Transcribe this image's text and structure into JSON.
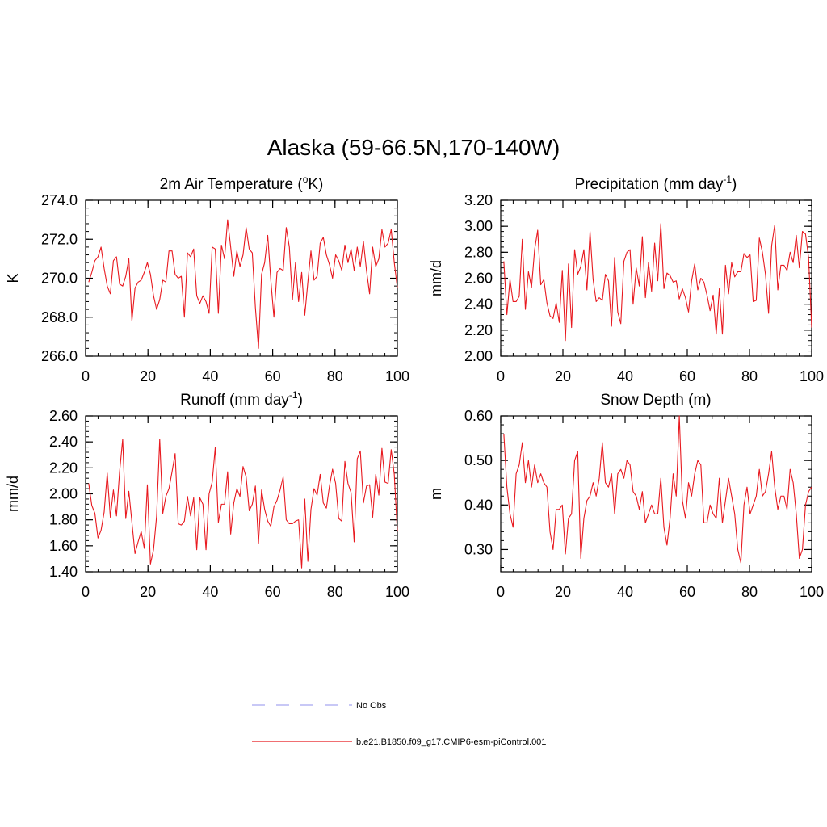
{
  "title": "Alaska (59-66.5N,170-140W)",
  "colors": {
    "model": "#e8191f",
    "obs": "#a8a8f0",
    "axis": "#000000"
  },
  "legend": {
    "obs_label": "No Obs",
    "model_label": "b.e21.B1850.f09_g17.CMIP6-esm-piControl.001"
  },
  "chart_data": [
    {
      "type": "line",
      "title_main": "2m Air Temperature (",
      "title_sup": "o",
      "title_end": "K)",
      "ylabel": "K",
      "xlim": [
        0,
        100
      ],
      "ylim": [
        266.0,
        274.0
      ],
      "xticks": [
        0,
        20,
        40,
        60,
        80,
        100
      ],
      "yticks": [
        266.0,
        268.0,
        270.0,
        272.0,
        274.0
      ],
      "ytick_labels": [
        "266.0",
        "268.0",
        "270.0",
        "272.0",
        "274.0"
      ],
      "series": [
        {
          "name": "b.e21.B1850.f09_g17.CMIP6-esm-piControl.001",
          "values": [
            269.8,
            270.3,
            270.9,
            271.1,
            271.6,
            270.5,
            269.6,
            269.2,
            270.9,
            271.1,
            269.7,
            269.6,
            270.1,
            271.0,
            267.8,
            269.5,
            269.8,
            269.9,
            270.3,
            270.8,
            270.2,
            269.1,
            268.4,
            268.9,
            269.9,
            269.8,
            271.4,
            271.4,
            270.2,
            270.0,
            270.1,
            268.0,
            271.3,
            271.1,
            271.5,
            269.1,
            268.7,
            269.1,
            268.8,
            268.2,
            271.6,
            271.5,
            268.2,
            271.7,
            271.0,
            273.0,
            271.6,
            270.1,
            271.4,
            270.6,
            271.2,
            272.6,
            271.5,
            271.3,
            268.5,
            266.4,
            270.2,
            270.8,
            272.2,
            269.9,
            268.0,
            270.3,
            270.5,
            270.4,
            272.6,
            271.6,
            268.9,
            270.8,
            268.8,
            270.3,
            268.1,
            269.8,
            271.4,
            269.9,
            270.1,
            271.8,
            272.1,
            271.2,
            270.7,
            270.0,
            271.2,
            270.9,
            270.4,
            271.7,
            270.8,
            271.5,
            270.4,
            271.6,
            270.6,
            271.9,
            270.4,
            269.2,
            271.6,
            270.6,
            271.0,
            272.5,
            271.6,
            271.8,
            272.5,
            270.8,
            269.5
          ]
        }
      ]
    },
    {
      "type": "line",
      "title_main": "Precipitation (mm day",
      "title_sup": "-1",
      "title_end": ")",
      "ylabel": "mm/d",
      "xlim": [
        0,
        100
      ],
      "ylim": [
        2.0,
        3.2
      ],
      "xticks": [
        0,
        20,
        40,
        60,
        80,
        100
      ],
      "yticks": [
        2.0,
        2.2,
        2.4,
        2.6,
        2.8,
        3.0,
        3.2
      ],
      "ytick_labels": [
        "2.00",
        "2.20",
        "2.40",
        "2.60",
        "2.80",
        "3.00",
        "3.20"
      ],
      "series": [
        {
          "name": "b.e21.B1850.f09_g17.CMIP6-esm-piControl.001",
          "values": [
            2.73,
            2.32,
            2.59,
            2.42,
            2.42,
            2.46,
            2.9,
            2.36,
            2.65,
            2.53,
            2.82,
            2.97,
            2.55,
            2.59,
            2.41,
            2.31,
            2.29,
            2.41,
            2.26,
            2.66,
            2.12,
            2.71,
            2.22,
            2.82,
            2.63,
            2.69,
            2.82,
            2.51,
            2.96,
            2.59,
            2.42,
            2.45,
            2.43,
            2.63,
            2.58,
            2.23,
            2.76,
            2.34,
            2.25,
            2.73,
            2.8,
            2.82,
            2.4,
            2.68,
            2.54,
            2.92,
            2.45,
            2.72,
            2.5,
            2.87,
            2.58,
            3.02,
            2.52,
            2.64,
            2.62,
            2.57,
            2.58,
            2.44,
            2.52,
            2.45,
            2.34,
            2.58,
            2.71,
            2.51,
            2.6,
            2.57,
            2.47,
            2.35,
            2.47,
            2.17,
            2.52,
            2.17,
            2.7,
            2.48,
            2.72,
            2.61,
            2.65,
            2.65,
            2.79,
            2.76,
            2.78,
            2.42,
            2.43,
            2.91,
            2.8,
            2.63,
            2.33,
            2.85,
            3.01,
            2.51,
            2.7,
            2.7,
            2.66,
            2.8,
            2.72,
            2.93,
            2.68,
            2.96,
            2.94,
            2.76,
            2.22
          ]
        }
      ]
    },
    {
      "type": "line",
      "title_main": "Runoff (mm day",
      "title_sup": "-1",
      "title_end": ")",
      "ylabel": "mm/d",
      "xlim": [
        0,
        100
      ],
      "ylim": [
        1.4,
        2.6
      ],
      "xticks": [
        0,
        20,
        40,
        60,
        80,
        100
      ],
      "yticks": [
        1.4,
        1.6,
        1.8,
        2.0,
        2.2,
        2.4,
        2.6
      ],
      "ytick_labels": [
        "1.40",
        "1.60",
        "1.80",
        "2.00",
        "2.20",
        "2.40",
        "2.60"
      ],
      "series": [
        {
          "name": "b.e21.B1850.f09_g17.CMIP6-esm-piControl.001",
          "values": [
            2.08,
            1.91,
            1.85,
            1.66,
            1.72,
            1.86,
            2.16,
            1.82,
            2.03,
            1.83,
            2.17,
            2.42,
            1.81,
            2.02,
            1.78,
            1.54,
            1.63,
            1.71,
            1.58,
            2.07,
            1.46,
            1.57,
            1.83,
            2.42,
            1.85,
            1.98,
            2.04,
            2.17,
            2.31,
            1.77,
            1.76,
            1.79,
            1.98,
            1.83,
            1.97,
            1.57,
            1.97,
            1.92,
            1.57,
            2.0,
            2.09,
            2.36,
            1.78,
            1.92,
            1.92,
            2.17,
            1.69,
            1.93,
            2.04,
            1.98,
            2.21,
            2.13,
            1.87,
            1.92,
            2.06,
            1.62,
            2.03,
            1.88,
            1.79,
            1.75,
            1.9,
            1.95,
            2.03,
            2.13,
            1.8,
            1.77,
            1.77,
            1.79,
            1.8,
            1.43,
            1.96,
            1.48,
            1.88,
            2.04,
            1.99,
            2.15,
            1.93,
            1.89,
            2.06,
            2.19,
            2.08,
            1.81,
            1.79,
            2.25,
            2.08,
            2.01,
            1.63,
            2.27,
            2.33,
            1.93,
            2.06,
            2.07,
            1.82,
            2.15,
            1.99,
            2.35,
            2.09,
            2.08,
            2.34,
            2.15,
            1.71
          ]
        }
      ]
    },
    {
      "type": "line",
      "title_main": "Snow Depth (m)",
      "title_sup": "",
      "title_end": "",
      "ylabel": "m",
      "xlim": [
        0,
        100
      ],
      "ylim": [
        0.25,
        0.6
      ],
      "xticks": [
        0,
        20,
        40,
        60,
        80,
        100
      ],
      "yticks": [
        0.3,
        0.4,
        0.5,
        0.6
      ],
      "ytick_labels": [
        "0.30",
        "0.40",
        "0.50",
        "0.60"
      ],
      "series": [
        {
          "name": "b.e21.B1850.f09_g17.CMIP6-esm-piControl.001",
          "values": [
            0.56,
            0.44,
            0.38,
            0.35,
            0.47,
            0.49,
            0.54,
            0.45,
            0.5,
            0.44,
            0.49,
            0.45,
            0.47,
            0.45,
            0.44,
            0.34,
            0.3,
            0.39,
            0.39,
            0.4,
            0.29,
            0.37,
            0.38,
            0.5,
            0.52,
            0.28,
            0.37,
            0.41,
            0.42,
            0.45,
            0.42,
            0.46,
            0.54,
            0.45,
            0.44,
            0.47,
            0.38,
            0.47,
            0.48,
            0.46,
            0.5,
            0.49,
            0.43,
            0.42,
            0.39,
            0.43,
            0.36,
            0.38,
            0.4,
            0.38,
            0.38,
            0.46,
            0.35,
            0.31,
            0.37,
            0.47,
            0.42,
            0.6,
            0.41,
            0.37,
            0.45,
            0.42,
            0.47,
            0.5,
            0.49,
            0.36,
            0.36,
            0.4,
            0.38,
            0.37,
            0.46,
            0.36,
            0.41,
            0.46,
            0.42,
            0.38,
            0.3,
            0.27,
            0.4,
            0.44,
            0.38,
            0.4,
            0.42,
            0.48,
            0.42,
            0.43,
            0.47,
            0.52,
            0.44,
            0.39,
            0.42,
            0.42,
            0.39,
            0.48,
            0.45,
            0.38,
            0.28,
            0.3,
            0.4,
            0.43,
            0.44
          ]
        }
      ]
    }
  ]
}
